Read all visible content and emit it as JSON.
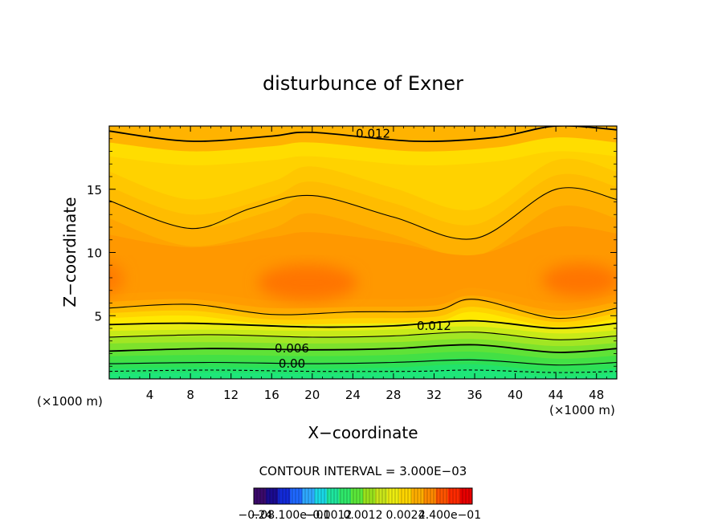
{
  "chart_data": {
    "type": "contour",
    "title": "disturbunce of Exner",
    "xlabel": "X−coordinate",
    "ylabel": "Z−coordinate",
    "x_unit_label": "(×1000 m)",
    "z_unit_label": "(×1000 m)",
    "xlim": [
      0,
      50
    ],
    "ylim": [
      0,
      20
    ],
    "x_ticks": [
      4,
      8,
      12,
      16,
      20,
      24,
      28,
      32,
      36,
      40,
      44,
      48
    ],
    "y_ticks": [
      5,
      10,
      15
    ],
    "contour_interval_text": "CONTOUR INTERVAL = 3.000E−03",
    "contour_labels": [
      {
        "text": "0.012",
        "x": 26,
        "z": 19.4
      },
      {
        "text": "0.012",
        "x": 32,
        "z": 4.2
      },
      {
        "text": "0.006",
        "x": 18,
        "z": 2.4
      },
      {
        "text": "0.00",
        "x": 18,
        "z": 1.2
      }
    ],
    "contour_lines": [
      {
        "level": 0.0,
        "style": "dashed",
        "points": [
          [
            0,
            0.6
          ],
          [
            10,
            0.7
          ],
          [
            20,
            0.6
          ],
          [
            30,
            0.6
          ],
          [
            36,
            0.7
          ],
          [
            44,
            0.5
          ],
          [
            50,
            0.6
          ]
        ]
      },
      {
        "level": 0.003,
        "style": "solid",
        "points": [
          [
            0,
            1.2
          ],
          [
            10,
            1.3
          ],
          [
            20,
            1.2
          ],
          [
            28,
            1.3
          ],
          [
            36,
            1.5
          ],
          [
            44,
            1.1
          ],
          [
            50,
            1.3
          ]
        ]
      },
      {
        "level": 0.006,
        "style": "solid",
        "points": [
          [
            0,
            2.2
          ],
          [
            10,
            2.4
          ],
          [
            20,
            2.3
          ],
          [
            28,
            2.4
          ],
          [
            36,
            2.7
          ],
          [
            44,
            2.1
          ],
          [
            50,
            2.4
          ]
        ]
      },
      {
        "level": 0.009,
        "style": "solid",
        "points": [
          [
            0,
            3.3
          ],
          [
            10,
            3.5
          ],
          [
            20,
            3.3
          ],
          [
            28,
            3.4
          ],
          [
            36,
            3.7
          ],
          [
            44,
            3.1
          ],
          [
            50,
            3.4
          ]
        ]
      },
      {
        "level": 0.012,
        "style": "solid",
        "points": [
          [
            0,
            4.3
          ],
          [
            8,
            4.4
          ],
          [
            20,
            4.1
          ],
          [
            28,
            4.2
          ],
          [
            36,
            4.6
          ],
          [
            44,
            4.0
          ],
          [
            50,
            4.4
          ]
        ]
      },
      {
        "level": 0.012,
        "style": "solid",
        "points": [
          [
            0,
            5.6
          ],
          [
            8,
            5.9
          ],
          [
            16,
            5.1
          ],
          [
            24,
            5.3
          ],
          [
            32,
            5.4
          ],
          [
            36,
            6.3
          ],
          [
            44,
            4.8
          ],
          [
            50,
            5.6
          ]
        ]
      },
      {
        "level": 0.012,
        "style": "solid",
        "points": [
          [
            0,
            14.1
          ],
          [
            8,
            11.9
          ],
          [
            14,
            13.5
          ],
          [
            20,
            14.5
          ],
          [
            28,
            12.8
          ],
          [
            36,
            11.1
          ],
          [
            44,
            15.0
          ],
          [
            50,
            14.2
          ]
        ]
      },
      {
        "level": 0.012,
        "style": "solid",
        "points": [
          [
            0,
            19.6
          ],
          [
            8,
            18.8
          ],
          [
            16,
            19.2
          ],
          [
            20,
            19.5
          ],
          [
            30,
            18.8
          ],
          [
            38,
            19.1
          ],
          [
            44,
            20.0
          ],
          [
            50,
            19.7
          ]
        ]
      }
    ],
    "colorbar": {
      "tick_labels": [
        "−0.24",
        "−08.100e−01",
        "−0.0012",
        "0.0012",
        "0.0024",
        "2.400e−01"
      ],
      "colors": [
        "#3b0a6b",
        "#1b0b8f",
        "#122ad8",
        "#1f68ff",
        "#2fa8ff",
        "#19d8e6",
        "#1ee69e",
        "#2fe86a",
        "#5be83a",
        "#99e21c",
        "#c9e51a",
        "#ecec10",
        "#ffd500",
        "#ffae00",
        "#ff8a00",
        "#ff5500",
        "#ff2a00",
        "#e80000"
      ]
    }
  }
}
